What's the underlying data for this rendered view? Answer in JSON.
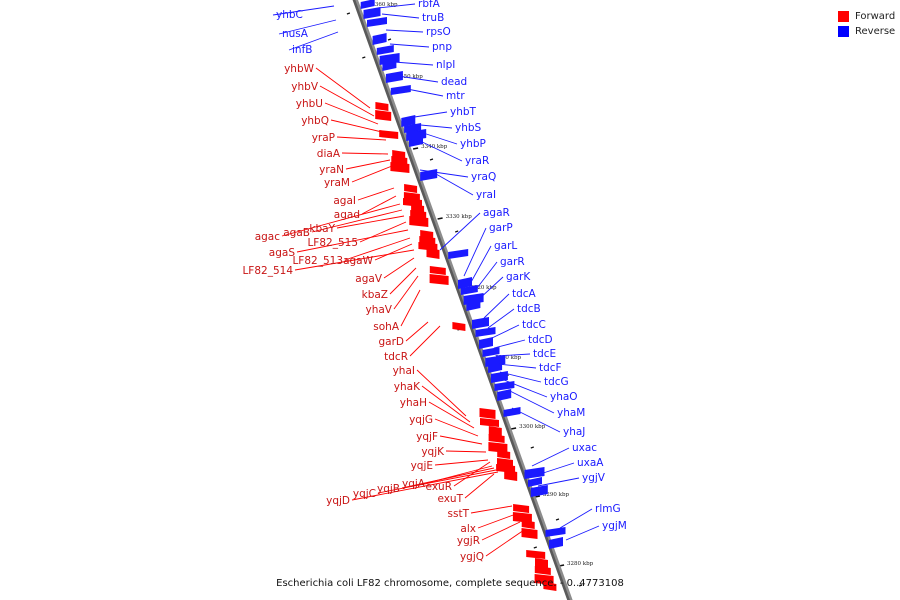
{
  "caption": "Escherichia coli LF82 chromosome, complete sequence. - 0..4773108",
  "legend": [
    {
      "label": "Forward",
      "color": "#ff0000"
    },
    {
      "label": "Reverse",
      "color": "#0000ff"
    }
  ],
  "colors": {
    "forward": "#ff0000",
    "reverse": "#1a1aff",
    "axis": "#8c8c8c",
    "tick": "#111111"
  },
  "ticks": [
    "3360 kbp",
    "3350 kbp",
    "3340 kbp",
    "3330 kbp",
    "3320 kbp",
    "3310 kbp",
    "3300 kbp",
    "3290 kbp",
    "3280 kbp"
  ],
  "reverse_genes": [
    "yhbC",
    "nusA",
    "infB",
    "rbfA",
    "truB",
    "rpsO",
    "pnp",
    "nlpI",
    "dead",
    "mtr",
    "yhbT",
    "yhbS",
    "yhbP",
    "yraR",
    "yraQ",
    "yraI",
    "agaR",
    "garP",
    "garL",
    "garR",
    "garK",
    "tdcA",
    "tdcB",
    "tdcC",
    "tdcD",
    "tdcE",
    "tdcF",
    "tdcG",
    "yhaO",
    "yhaM",
    "yhaJ",
    "uxac",
    "uxaA",
    "ygjV",
    "rlmG",
    "ygjM"
  ],
  "forward_genes": [
    "yhbW",
    "yhbV",
    "yhbU",
    "yhbQ",
    "yraP",
    "diaA",
    "yraN",
    "yraM",
    "agaI",
    "agad",
    "agac",
    "agaB",
    "kbaY",
    "LF82_515",
    "agaS",
    "LF82_513",
    "agaW",
    "LF82_514",
    "agaV",
    "kbaZ",
    "yhaV",
    "sohA",
    "garD",
    "tdcR",
    "yhaI",
    "yhaK",
    "yhaH",
    "yqjG",
    "yqjF",
    "yqjK",
    "yqjE",
    "exuR",
    "yqjA",
    "yqjB",
    "yqjC",
    "yqjD",
    "exuT",
    "sstT",
    "alx",
    "ygjR",
    "ygjQ"
  ]
}
